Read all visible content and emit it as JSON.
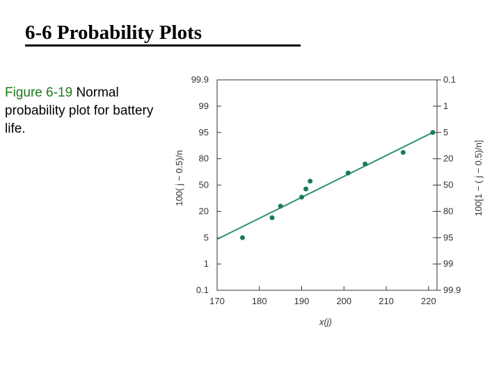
{
  "slide": {
    "title": "6-6 Probability Plots",
    "caption_figure": "Figure 6-19",
    "caption_text": " Normal probability plot for battery life."
  },
  "chart_data": {
    "type": "scatter",
    "title": "",
    "xlabel": "x(j)",
    "ylabel_left": "100( j − 0.5)/n",
    "ylabel_right": "100[1 − ( j − 0.5)/n]",
    "xlim": [
      170,
      222
    ],
    "x_ticks": [
      170,
      180,
      190,
      200,
      210,
      220
    ],
    "y_ticks_left": [
      "0.1",
      "1",
      "5",
      "20",
      "50",
      "80",
      "95",
      "99",
      "99.9"
    ],
    "y_ticks_right": [
      "99.9",
      "99",
      "95",
      "80",
      "50",
      "20",
      "5",
      "1",
      "0.1"
    ],
    "y_scale": "normal-probability",
    "ylim": [
      0.1,
      99.9
    ],
    "points": [
      {
        "x": 176,
        "y": 5
      },
      {
        "x": 183,
        "y": 15
      },
      {
        "x": 185,
        "y": 25
      },
      {
        "x": 190,
        "y": 35
      },
      {
        "x": 191,
        "y": 45
      },
      {
        "x": 192,
        "y": 55
      },
      {
        "x": 201,
        "y": 65
      },
      {
        "x": 205,
        "y": 75
      },
      {
        "x": 214,
        "y": 85
      },
      {
        "x": 221,
        "y": 95
      }
    ],
    "fit_line": [
      {
        "x": 170,
        "y": 4.6
      },
      {
        "x": 221,
        "y": 95
      }
    ],
    "colors": {
      "marker": "#1b7a5a",
      "line": "#2f8f6a",
      "frame": "#333333",
      "ticks_text": "#333333"
    },
    "grid": false
  }
}
